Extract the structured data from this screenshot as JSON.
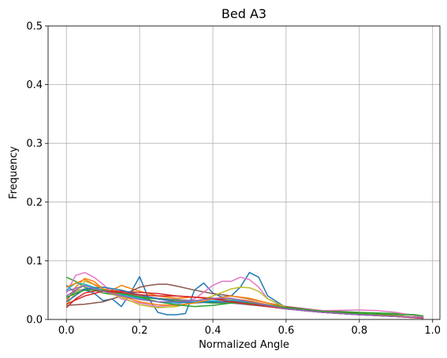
{
  "chart_data": {
    "type": "line",
    "title": "Bed A3",
    "xlabel": "Normalized Angle",
    "ylabel": "Frequency",
    "xlim": [
      -0.05,
      1.02
    ],
    "ylim": [
      0,
      0.5
    ],
    "xticks": [
      "0.0",
      "0.2",
      "0.4",
      "0.6",
      "0.8",
      "1.0"
    ],
    "yticks": [
      "0.0",
      "0.1",
      "0.2",
      "0.3",
      "0.4",
      "0.5"
    ],
    "grid": true,
    "legend": "none",
    "series": [
      {
        "color": "#1f77b4",
        "points": [
          [
            0.0,
            0.058
          ],
          [
            0.025,
            0.045
          ],
          [
            0.05,
            0.05
          ],
          [
            0.075,
            0.045
          ],
          [
            0.1,
            0.032
          ],
          [
            0.125,
            0.035
          ],
          [
            0.15,
            0.022
          ],
          [
            0.175,
            0.045
          ],
          [
            0.2,
            0.073
          ],
          [
            0.225,
            0.035
          ],
          [
            0.25,
            0.012
          ],
          [
            0.275,
            0.008
          ],
          [
            0.3,
            0.008
          ],
          [
            0.325,
            0.01
          ],
          [
            0.35,
            0.05
          ],
          [
            0.375,
            0.062
          ],
          [
            0.4,
            0.045
          ],
          [
            0.425,
            0.038
          ],
          [
            0.45,
            0.04
          ],
          [
            0.475,
            0.055
          ],
          [
            0.5,
            0.08
          ],
          [
            0.525,
            0.072
          ],
          [
            0.55,
            0.04
          ],
          [
            0.6,
            0.02
          ],
          [
            0.65,
            0.015
          ],
          [
            0.7,
            0.012
          ],
          [
            0.8,
            0.008
          ],
          [
            0.9,
            0.006
          ],
          [
            0.975,
            0.003
          ]
        ]
      },
      {
        "color": "#ff7f0e",
        "points": [
          [
            0.0,
            0.03
          ],
          [
            0.025,
            0.055
          ],
          [
            0.05,
            0.07
          ],
          [
            0.075,
            0.065
          ],
          [
            0.1,
            0.052
          ],
          [
            0.125,
            0.05
          ],
          [
            0.15,
            0.058
          ],
          [
            0.2,
            0.048
          ],
          [
            0.25,
            0.04
          ],
          [
            0.3,
            0.036
          ],
          [
            0.35,
            0.038
          ],
          [
            0.4,
            0.036
          ],
          [
            0.45,
            0.035
          ],
          [
            0.5,
            0.032
          ],
          [
            0.55,
            0.025
          ],
          [
            0.6,
            0.02
          ],
          [
            0.7,
            0.012
          ],
          [
            0.8,
            0.008
          ],
          [
            0.9,
            0.005
          ],
          [
            0.975,
            0.002
          ]
        ]
      },
      {
        "color": "#2ca02c",
        "points": [
          [
            0.0,
            0.072
          ],
          [
            0.025,
            0.065
          ],
          [
            0.05,
            0.055
          ],
          [
            0.075,
            0.05
          ],
          [
            0.1,
            0.045
          ],
          [
            0.15,
            0.04
          ],
          [
            0.2,
            0.038
          ],
          [
            0.25,
            0.035
          ],
          [
            0.3,
            0.032
          ],
          [
            0.35,
            0.03
          ],
          [
            0.4,
            0.028
          ],
          [
            0.45,
            0.028
          ],
          [
            0.5,
            0.026
          ],
          [
            0.55,
            0.024
          ],
          [
            0.6,
            0.02
          ],
          [
            0.7,
            0.015
          ],
          [
            0.8,
            0.012
          ],
          [
            0.9,
            0.01
          ],
          [
            0.95,
            0.008
          ],
          [
            0.975,
            0.005
          ]
        ]
      },
      {
        "color": "#d62728",
        "points": [
          [
            0.0,
            0.02
          ],
          [
            0.025,
            0.035
          ],
          [
            0.05,
            0.045
          ],
          [
            0.075,
            0.048
          ],
          [
            0.1,
            0.05
          ],
          [
            0.15,
            0.048
          ],
          [
            0.2,
            0.046
          ],
          [
            0.25,
            0.044
          ],
          [
            0.3,
            0.04
          ],
          [
            0.35,
            0.038
          ],
          [
            0.4,
            0.036
          ],
          [
            0.45,
            0.032
          ],
          [
            0.5,
            0.028
          ],
          [
            0.55,
            0.024
          ],
          [
            0.6,
            0.018
          ],
          [
            0.7,
            0.012
          ],
          [
            0.8,
            0.008
          ],
          [
            0.9,
            0.005
          ],
          [
            0.975,
            0.002
          ]
        ]
      },
      {
        "color": "#9467bd",
        "points": [
          [
            0.0,
            0.04
          ],
          [
            0.025,
            0.05
          ],
          [
            0.05,
            0.058
          ],
          [
            0.075,
            0.055
          ],
          [
            0.1,
            0.05
          ],
          [
            0.15,
            0.042
          ],
          [
            0.2,
            0.035
          ],
          [
            0.25,
            0.03
          ],
          [
            0.3,
            0.028
          ],
          [
            0.35,
            0.03
          ],
          [
            0.4,
            0.03
          ],
          [
            0.45,
            0.028
          ],
          [
            0.5,
            0.025
          ],
          [
            0.55,
            0.022
          ],
          [
            0.6,
            0.018
          ],
          [
            0.7,
            0.012
          ],
          [
            0.8,
            0.008
          ],
          [
            0.9,
            0.005
          ],
          [
            0.975,
            0.003
          ]
        ]
      },
      {
        "color": "#8c564b",
        "points": [
          [
            0.0,
            0.024
          ],
          [
            0.05,
            0.026
          ],
          [
            0.1,
            0.03
          ],
          [
            0.15,
            0.04
          ],
          [
            0.2,
            0.055
          ],
          [
            0.225,
            0.058
          ],
          [
            0.25,
            0.06
          ],
          [
            0.275,
            0.06
          ],
          [
            0.3,
            0.057
          ],
          [
            0.35,
            0.05
          ],
          [
            0.4,
            0.044
          ],
          [
            0.45,
            0.04
          ],
          [
            0.5,
            0.035
          ],
          [
            0.55,
            0.028
          ],
          [
            0.6,
            0.022
          ],
          [
            0.7,
            0.015
          ],
          [
            0.8,
            0.01
          ],
          [
            0.9,
            0.006
          ],
          [
            0.975,
            0.003
          ]
        ]
      },
      {
        "color": "#e377c2",
        "points": [
          [
            0.0,
            0.045
          ],
          [
            0.025,
            0.075
          ],
          [
            0.05,
            0.08
          ],
          [
            0.075,
            0.072
          ],
          [
            0.1,
            0.06
          ],
          [
            0.125,
            0.045
          ],
          [
            0.15,
            0.035
          ],
          [
            0.2,
            0.028
          ],
          [
            0.25,
            0.022
          ],
          [
            0.3,
            0.025
          ],
          [
            0.35,
            0.035
          ],
          [
            0.4,
            0.058
          ],
          [
            0.425,
            0.065
          ],
          [
            0.45,
            0.065
          ],
          [
            0.475,
            0.072
          ],
          [
            0.5,
            0.068
          ],
          [
            0.525,
            0.055
          ],
          [
            0.55,
            0.035
          ],
          [
            0.6,
            0.02
          ],
          [
            0.7,
            0.015
          ],
          [
            0.8,
            0.016
          ],
          [
            0.85,
            0.015
          ],
          [
            0.9,
            0.012
          ],
          [
            0.975,
            0.004
          ]
        ]
      },
      {
        "color": "#7f7f7f",
        "points": [
          [
            0.0,
            0.035
          ],
          [
            0.025,
            0.048
          ],
          [
            0.05,
            0.052
          ],
          [
            0.1,
            0.05
          ],
          [
            0.15,
            0.045
          ],
          [
            0.2,
            0.04
          ],
          [
            0.25,
            0.036
          ],
          [
            0.3,
            0.034
          ],
          [
            0.35,
            0.032
          ],
          [
            0.4,
            0.03
          ],
          [
            0.45,
            0.028
          ],
          [
            0.5,
            0.025
          ],
          [
            0.55,
            0.022
          ],
          [
            0.6,
            0.018
          ],
          [
            0.7,
            0.012
          ],
          [
            0.8,
            0.008
          ],
          [
            0.9,
            0.005
          ],
          [
            0.975,
            0.003
          ]
        ]
      },
      {
        "color": "#bcbd22",
        "points": [
          [
            0.0,
            0.025
          ],
          [
            0.05,
            0.065
          ],
          [
            0.075,
            0.06
          ],
          [
            0.1,
            0.048
          ],
          [
            0.15,
            0.038
          ],
          [
            0.2,
            0.025
          ],
          [
            0.25,
            0.02
          ],
          [
            0.3,
            0.022
          ],
          [
            0.35,
            0.03
          ],
          [
            0.4,
            0.04
          ],
          [
            0.45,
            0.052
          ],
          [
            0.475,
            0.055
          ],
          [
            0.5,
            0.054
          ],
          [
            0.525,
            0.048
          ],
          [
            0.55,
            0.035
          ],
          [
            0.6,
            0.02
          ],
          [
            0.7,
            0.013
          ],
          [
            0.8,
            0.009
          ],
          [
            0.9,
            0.006
          ],
          [
            0.975,
            0.003
          ]
        ]
      },
      {
        "color": "#17becf",
        "points": [
          [
            0.0,
            0.05
          ],
          [
            0.025,
            0.062
          ],
          [
            0.05,
            0.06
          ],
          [
            0.1,
            0.05
          ],
          [
            0.15,
            0.042
          ],
          [
            0.2,
            0.036
          ],
          [
            0.25,
            0.03
          ],
          [
            0.3,
            0.028
          ],
          [
            0.35,
            0.03
          ],
          [
            0.4,
            0.032
          ],
          [
            0.45,
            0.033
          ],
          [
            0.5,
            0.03
          ],
          [
            0.55,
            0.024
          ],
          [
            0.6,
            0.018
          ],
          [
            0.7,
            0.012
          ],
          [
            0.8,
            0.008
          ],
          [
            0.9,
            0.005
          ],
          [
            0.975,
            0.003
          ]
        ]
      },
      {
        "color": "#1f77b4",
        "points": [
          [
            0.0,
            0.03
          ],
          [
            0.05,
            0.052
          ],
          [
            0.1,
            0.055
          ],
          [
            0.15,
            0.05
          ],
          [
            0.2,
            0.042
          ],
          [
            0.25,
            0.035
          ],
          [
            0.3,
            0.03
          ],
          [
            0.35,
            0.028
          ],
          [
            0.4,
            0.03
          ],
          [
            0.45,
            0.03
          ],
          [
            0.5,
            0.028
          ],
          [
            0.55,
            0.024
          ],
          [
            0.6,
            0.019
          ],
          [
            0.7,
            0.013
          ],
          [
            0.8,
            0.009
          ],
          [
            0.9,
            0.006
          ],
          [
            0.975,
            0.003
          ]
        ]
      },
      {
        "color": "#ff7f0e",
        "points": [
          [
            0.0,
            0.055
          ],
          [
            0.05,
            0.068
          ],
          [
            0.1,
            0.052
          ],
          [
            0.15,
            0.04
          ],
          [
            0.2,
            0.03
          ],
          [
            0.25,
            0.025
          ],
          [
            0.3,
            0.024
          ],
          [
            0.35,
            0.028
          ],
          [
            0.4,
            0.035
          ],
          [
            0.45,
            0.04
          ],
          [
            0.5,
            0.036
          ],
          [
            0.55,
            0.028
          ],
          [
            0.6,
            0.02
          ],
          [
            0.7,
            0.013
          ],
          [
            0.8,
            0.009
          ],
          [
            0.9,
            0.006
          ],
          [
            0.975,
            0.003
          ]
        ]
      },
      {
        "color": "#2ca02c",
        "points": [
          [
            0.0,
            0.038
          ],
          [
            0.05,
            0.05
          ],
          [
            0.1,
            0.05
          ],
          [
            0.15,
            0.044
          ],
          [
            0.2,
            0.038
          ],
          [
            0.25,
            0.03
          ],
          [
            0.3,
            0.025
          ],
          [
            0.35,
            0.022
          ],
          [
            0.4,
            0.024
          ],
          [
            0.45,
            0.028
          ],
          [
            0.5,
            0.028
          ],
          [
            0.55,
            0.025
          ],
          [
            0.6,
            0.02
          ],
          [
            0.7,
            0.014
          ],
          [
            0.8,
            0.01
          ],
          [
            0.9,
            0.008
          ],
          [
            0.95,
            0.008
          ],
          [
            0.975,
            0.006
          ]
        ]
      },
      {
        "color": "#d62728",
        "points": [
          [
            0.0,
            0.026
          ],
          [
            0.05,
            0.04
          ],
          [
            0.1,
            0.048
          ],
          [
            0.15,
            0.046
          ],
          [
            0.2,
            0.042
          ],
          [
            0.25,
            0.04
          ],
          [
            0.3,
            0.04
          ],
          [
            0.35,
            0.038
          ],
          [
            0.4,
            0.035
          ],
          [
            0.45,
            0.03
          ],
          [
            0.5,
            0.026
          ],
          [
            0.55,
            0.022
          ],
          [
            0.6,
            0.018
          ],
          [
            0.7,
            0.012
          ],
          [
            0.8,
            0.008
          ],
          [
            0.9,
            0.005
          ],
          [
            0.975,
            0.002
          ]
        ]
      },
      {
        "color": "#9467bd",
        "points": [
          [
            0.0,
            0.048
          ],
          [
            0.05,
            0.058
          ],
          [
            0.1,
            0.048
          ],
          [
            0.15,
            0.04
          ],
          [
            0.2,
            0.034
          ],
          [
            0.25,
            0.03
          ],
          [
            0.3,
            0.03
          ],
          [
            0.35,
            0.032
          ],
          [
            0.4,
            0.036
          ],
          [
            0.45,
            0.036
          ],
          [
            0.5,
            0.03
          ],
          [
            0.55,
            0.024
          ],
          [
            0.6,
            0.018
          ],
          [
            0.7,
            0.012
          ],
          [
            0.8,
            0.008
          ],
          [
            0.9,
            0.005
          ],
          [
            0.975,
            0.003
          ]
        ]
      }
    ]
  }
}
